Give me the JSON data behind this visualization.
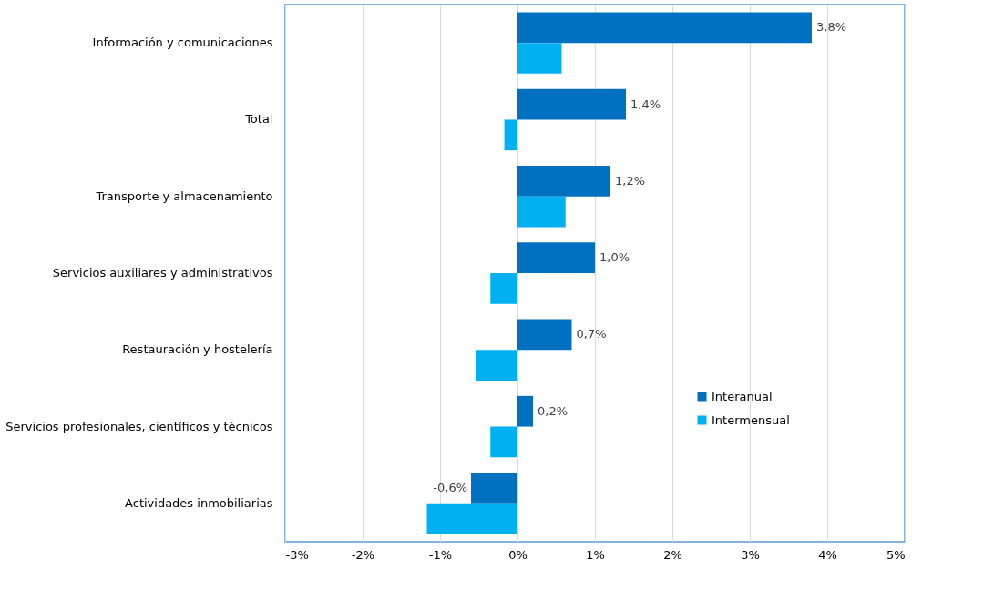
{
  "chart_data": {
    "type": "bar",
    "orientation": "horizontal",
    "categories": [
      "Información y comunicaciones",
      "Total",
      "Transporte y almacenamiento",
      "Servicios auxiliares y administrativos",
      "Restauración y hostelería",
      "Servicios profesionales, científicos y técnicos",
      "Actividades inmobiliarias"
    ],
    "series": [
      {
        "name": "Interanual",
        "color": "#0070c0",
        "values": [
          3.8,
          1.4,
          1.2,
          1.0,
          0.7,
          0.2,
          -0.6
        ],
        "value_labels": [
          "3,8%",
          "1,4%",
          "1,2%",
          "1,0%",
          "0,7%",
          "0,2%",
          "-0,6%"
        ]
      },
      {
        "name": "Intermensual",
        "color": "#00b0f0",
        "values": [
          0.57,
          -0.17,
          0.62,
          -0.35,
          -0.53,
          -0.35,
          -1.17
        ]
      }
    ],
    "xlim": [
      -3,
      5
    ],
    "xticks": [
      {
        "value": -3,
        "label": "-3%"
      },
      {
        "value": -2,
        "label": "-2%"
      },
      {
        "value": -1,
        "label": "-1%"
      },
      {
        "value": 0,
        "label": "0%"
      },
      {
        "value": 1,
        "label": "1%"
      },
      {
        "value": 2,
        "label": "2%"
      },
      {
        "value": 3,
        "label": "3%"
      },
      {
        "value": 4,
        "label": "4%"
      },
      {
        "value": 5,
        "label": "5%"
      }
    ],
    "grid": "x",
    "legend": "bottom right"
  }
}
